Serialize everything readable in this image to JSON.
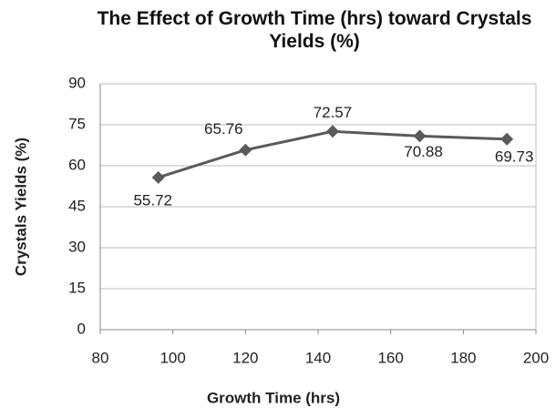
{
  "chart_data": {
    "type": "line",
    "title": "The Effect of Growth Time (hrs) toward Crystals Yields (%)",
    "x_label": "Growth Time (hrs)",
    "y_label": "Crystals Yields (%)",
    "x": [
      96,
      120,
      144,
      168,
      192
    ],
    "series": [
      {
        "name": "Crystals Yields",
        "color": "#5a5a5a",
        "values": [
          55.72,
          65.76,
          72.57,
          70.88,
          69.73
        ]
      }
    ],
    "xlim": [
      80,
      200
    ],
    "xticks": [
      80,
      100,
      120,
      140,
      160,
      180,
      200
    ],
    "ylim": [
      0,
      90
    ],
    "yticks": [
      0,
      15,
      30,
      45,
      60,
      75,
      90
    ],
    "grid": true
  }
}
